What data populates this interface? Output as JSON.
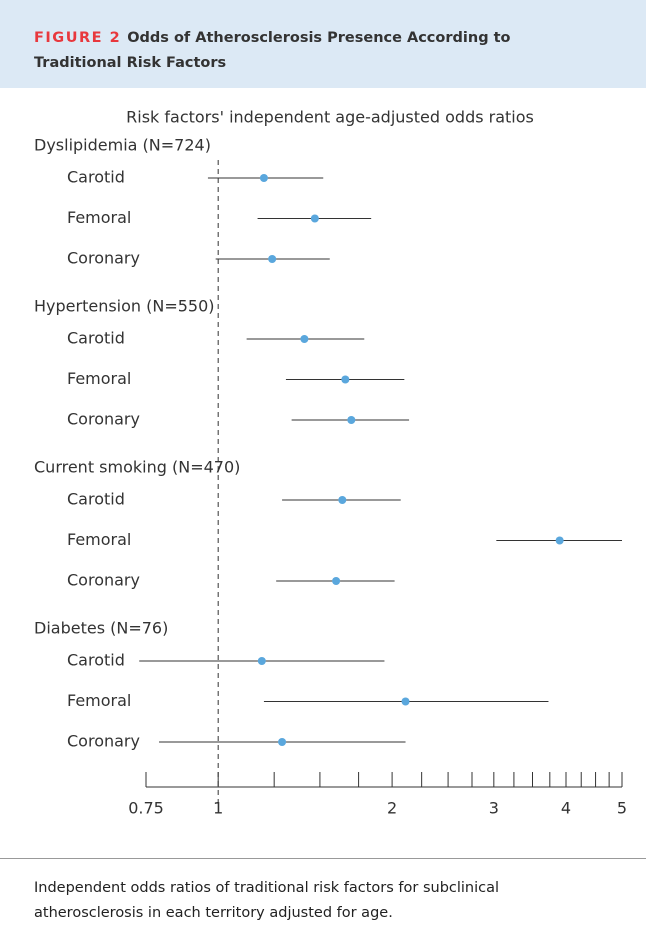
{
  "header": {
    "label": "FIGURE 2",
    "title": "Odds of Atherosclerosis Presence According to Traditional Risk Factors"
  },
  "chart_data": {
    "type": "forest",
    "subtitle": "Risk factors' independent age-adjusted odds ratios",
    "xscale": "log",
    "xlim": [
      0.75,
      5
    ],
    "xticks": [
      0.75,
      1,
      2,
      3,
      4,
      5
    ],
    "xminor_ticks": [
      1.25,
      1.5,
      1.75,
      2.25,
      2.5,
      2.75,
      3.25,
      3.5,
      3.75,
      4.25,
      4.5,
      4.75
    ],
    "reference": 1,
    "color": "#5aa7dd",
    "groups": [
      {
        "name": "Dyslipidemia (N=724)",
        "rows": [
          {
            "label": "Carotid",
            "value": 1.2,
            "low": 0.96,
            "high": 1.52
          },
          {
            "label": "Femoral",
            "value": 1.47,
            "low": 1.17,
            "high": 1.84
          },
          {
            "label": "Coronary",
            "value": 1.24,
            "low": 0.99,
            "high": 1.56
          }
        ]
      },
      {
        "name": "Hypertension (N=550)",
        "rows": [
          {
            "label": "Carotid",
            "value": 1.41,
            "low": 1.12,
            "high": 1.79
          },
          {
            "label": "Femoral",
            "value": 1.66,
            "low": 1.31,
            "high": 2.1
          },
          {
            "label": "Coronary",
            "value": 1.7,
            "low": 1.34,
            "high": 2.14
          }
        ]
      },
      {
        "name": "Current smoking (N=470)",
        "rows": [
          {
            "label": "Carotid",
            "value": 1.64,
            "low": 1.29,
            "high": 2.07
          },
          {
            "label": "Femoral",
            "value": 3.9,
            "low": 3.03,
            "high": 5.0
          },
          {
            "label": "Coronary",
            "value": 1.6,
            "low": 1.26,
            "high": 2.02
          }
        ]
      },
      {
        "name": "Diabetes (N=76)",
        "rows": [
          {
            "label": "Carotid",
            "value": 1.19,
            "low": 0.73,
            "high": 1.94
          },
          {
            "label": "Femoral",
            "value": 2.11,
            "low": 1.2,
            "high": 3.73
          },
          {
            "label": "Coronary",
            "value": 1.29,
            "low": 0.79,
            "high": 2.11
          }
        ]
      }
    ]
  },
  "caption": "Independent odds ratios of traditional risk factors for subclinical atherosclerosis in each territory adjusted for age."
}
